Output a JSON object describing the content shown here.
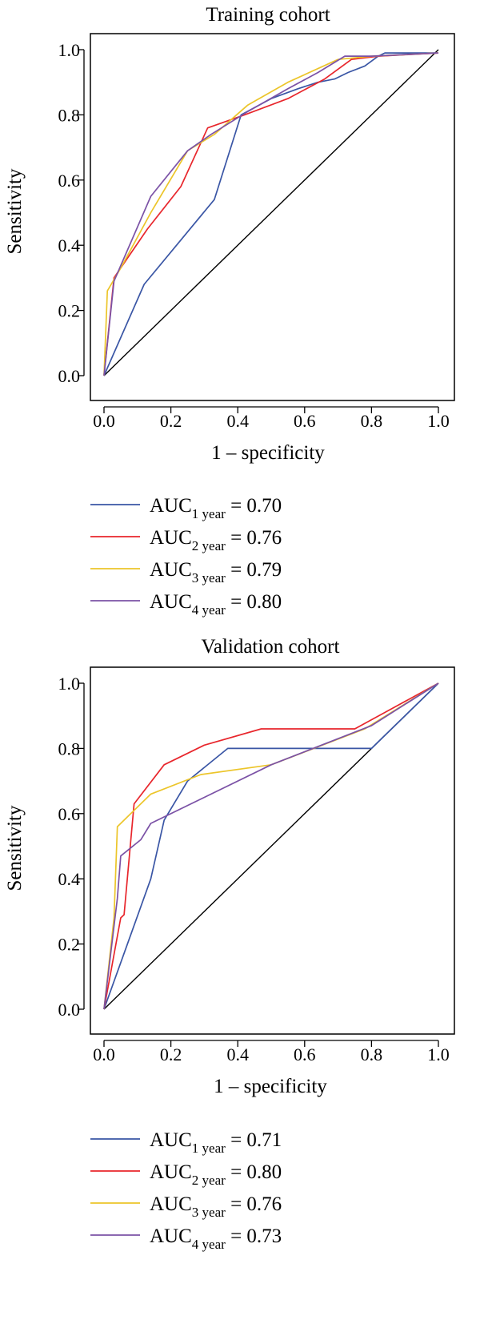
{
  "chart_data": [
    {
      "type": "line",
      "title": "Training cohort",
      "xlabel": "1 – specificity",
      "ylabel": "Sensitivity",
      "xlim": [
        0,
        1
      ],
      "ylim": [
        0,
        1
      ],
      "xticks": [
        "0.0",
        "0.2",
        "0.4",
        "0.6",
        "0.8",
        "1.0"
      ],
      "yticks": [
        "0.0",
        "0.2",
        "0.4",
        "0.6",
        "0.8",
        "1.0"
      ],
      "reference_line": "diagonal",
      "legend_position": "below",
      "series": [
        {
          "legend": {
            "prefix": "AUC",
            "sub": "1 year",
            "suffix": " = 0.70"
          },
          "color": "#3a56a5",
          "points": [
            [
              0,
              0
            ],
            [
              0.12,
              0.28
            ],
            [
              0.33,
              0.54
            ],
            [
              0.41,
              0.8
            ],
            [
              0.5,
              0.85
            ],
            [
              0.58,
              0.88
            ],
            [
              0.64,
              0.9
            ],
            [
              0.69,
              0.91
            ],
            [
              0.73,
              0.93
            ],
            [
              0.78,
              0.95
            ],
            [
              0.82,
              0.98
            ],
            [
              0.84,
              0.99
            ],
            [
              1,
              0.99
            ]
          ]
        },
        {
          "legend": {
            "prefix": "AUC",
            "sub": "2 year",
            "suffix": " = 0.76"
          },
          "color": "#e8262c",
          "points": [
            [
              0,
              0
            ],
            [
              0.03,
              0.3
            ],
            [
              0.13,
              0.45
            ],
            [
              0.23,
              0.58
            ],
            [
              0.31,
              0.76
            ],
            [
              0.42,
              0.8
            ],
            [
              0.55,
              0.85
            ],
            [
              0.66,
              0.91
            ],
            [
              0.74,
              0.97
            ],
            [
              0.82,
              0.98
            ],
            [
              1,
              0.99
            ]
          ]
        },
        {
          "legend": {
            "prefix": "AUC",
            "sub": "3 year",
            "suffix": " = 0.79"
          },
          "color": "#ecc52a",
          "points": [
            [
              0,
              0
            ],
            [
              0.01,
              0.26
            ],
            [
              0.05,
              0.33
            ],
            [
              0.14,
              0.5
            ],
            [
              0.25,
              0.69
            ],
            [
              0.33,
              0.74
            ],
            [
              0.43,
              0.83
            ],
            [
              0.55,
              0.9
            ],
            [
              0.7,
              0.97
            ],
            [
              0.8,
              0.98
            ],
            [
              1,
              0.99
            ]
          ]
        },
        {
          "legend": {
            "prefix": "AUC",
            "sub": "4 year",
            "suffix": " = 0.80"
          },
          "color": "#7b52a6",
          "points": [
            [
              0,
              0
            ],
            [
              0.03,
              0.29
            ],
            [
              0.14,
              0.55
            ],
            [
              0.25,
              0.69
            ],
            [
              0.32,
              0.74
            ],
            [
              0.43,
              0.81
            ],
            [
              0.55,
              0.88
            ],
            [
              0.64,
              0.93
            ],
            [
              0.72,
              0.98
            ],
            [
              0.8,
              0.98
            ],
            [
              1,
              0.99
            ]
          ]
        }
      ]
    },
    {
      "type": "line",
      "title": "Validation cohort",
      "xlabel": "1 – specificity",
      "ylabel": "Sensitivity",
      "xlim": [
        0,
        1
      ],
      "ylim": [
        0,
        1
      ],
      "xticks": [
        "0.0",
        "0.2",
        "0.4",
        "0.6",
        "0.8",
        "1.0"
      ],
      "yticks": [
        "0.0",
        "0.2",
        "0.4",
        "0.6",
        "0.8",
        "1.0"
      ],
      "reference_line": "diagonal",
      "legend_position": "below",
      "series": [
        {
          "legend": {
            "prefix": "AUC",
            "sub": "1 year",
            "suffix": " = 0.71"
          },
          "color": "#3a56a5",
          "points": [
            [
              0,
              0
            ],
            [
              0.07,
              0.2
            ],
            [
              0.14,
              0.4
            ],
            [
              0.18,
              0.58
            ],
            [
              0.25,
              0.7
            ],
            [
              0.37,
              0.8
            ],
            [
              0.8,
              0.8
            ],
            [
              1,
              1
            ]
          ]
        },
        {
          "legend": {
            "prefix": "AUC",
            "sub": "2 year",
            "suffix": " = 0.80"
          },
          "color": "#e8262c",
          "points": [
            [
              0,
              0
            ],
            [
              0.05,
              0.28
            ],
            [
              0.06,
              0.29
            ],
            [
              0.09,
              0.63
            ],
            [
              0.18,
              0.75
            ],
            [
              0.3,
              0.81
            ],
            [
              0.47,
              0.86
            ],
            [
              0.75,
              0.86
            ],
            [
              1,
              1
            ]
          ]
        },
        {
          "legend": {
            "prefix": "AUC",
            "sub": "3 year",
            "suffix": " = 0.76"
          },
          "color": "#ecc52a",
          "points": [
            [
              0,
              0
            ],
            [
              0.03,
              0.28
            ],
            [
              0.04,
              0.56
            ],
            [
              0.14,
              0.66
            ],
            [
              0.29,
              0.72
            ],
            [
              0.5,
              0.75
            ],
            [
              0.78,
              0.86
            ],
            [
              1,
              1
            ]
          ]
        },
        {
          "legend": {
            "prefix": "AUC",
            "sub": "4 year",
            "suffix": " = 0.73"
          },
          "color": "#7b52a6",
          "points": [
            [
              0,
              0
            ],
            [
              0.04,
              0.34
            ],
            [
              0.05,
              0.47
            ],
            [
              0.11,
              0.52
            ],
            [
              0.14,
              0.57
            ],
            [
              0.3,
              0.65
            ],
            [
              0.5,
              0.75
            ],
            [
              0.8,
              0.87
            ],
            [
              1,
              1
            ]
          ]
        }
      ]
    }
  ]
}
